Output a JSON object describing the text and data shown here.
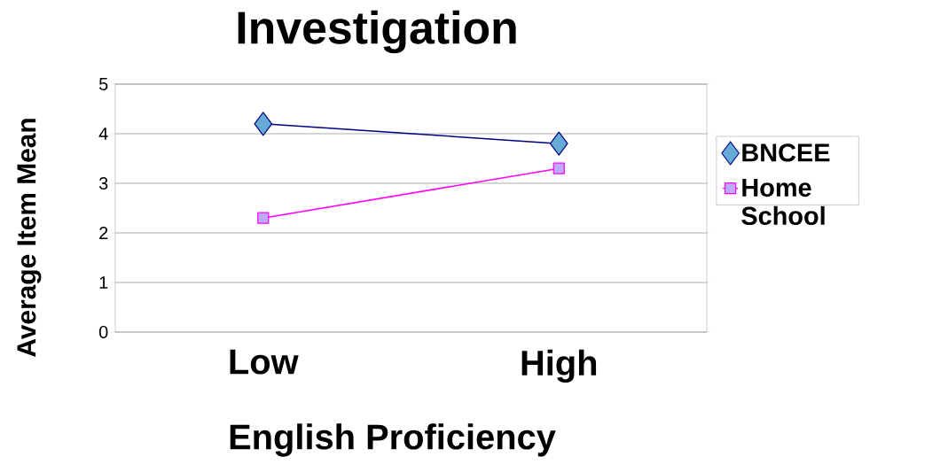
{
  "chart_data": {
    "type": "line",
    "title": "Investigation",
    "xlabel": "English Proficiency",
    "ylabel": "Average Item Mean",
    "categories": [
      "Low",
      "High"
    ],
    "series": [
      {
        "name": "BNCEE",
        "color": "#000080",
        "marker": "diamond",
        "values": [
          4.2,
          3.8
        ]
      },
      {
        "name": "Home School",
        "color": "#ff00ff",
        "marker": "square",
        "values": [
          2.3,
          3.3
        ]
      }
    ],
    "ylim": [
      0,
      5
    ],
    "yticks": [
      0,
      1,
      2,
      3,
      4,
      5
    ],
    "grid": "y",
    "legend": "right"
  }
}
